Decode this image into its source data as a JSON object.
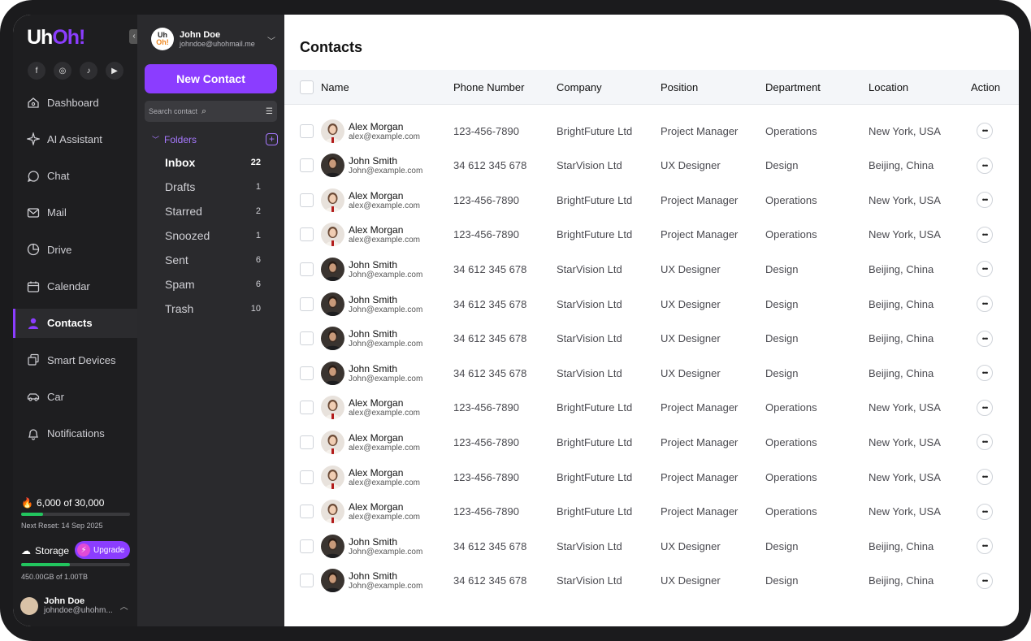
{
  "app": {
    "logo_a": "Uh",
    "logo_b": "Oh!"
  },
  "nav": {
    "socials": [
      "f",
      "◎",
      "♪",
      "▶"
    ],
    "items": [
      {
        "label": "Dashboard",
        "icon": "home-icon"
      },
      {
        "label": "AI Assistant",
        "icon": "sparkle-icon"
      },
      {
        "label": "Chat",
        "icon": "chat-icon"
      },
      {
        "label": "Mail",
        "icon": "mail-icon"
      },
      {
        "label": "Drive",
        "icon": "drive-icon"
      },
      {
        "label": "Calendar",
        "icon": "calendar-icon"
      },
      {
        "label": "Contacts",
        "icon": "user-icon",
        "active": true
      },
      {
        "label": "Smart Devices",
        "icon": "devices-icon"
      },
      {
        "label": "Car",
        "icon": "car-icon"
      },
      {
        "label": "Notifications",
        "icon": "bell-icon"
      }
    ],
    "credits": "6,000 of 30,000",
    "credits_fraction": 0.2,
    "next_reset": "Next Reset: 14 Sep 2025",
    "storage_label": "Storage",
    "upgrade_label": "Upgrade",
    "storage_text": "450.00GB of 1.00TB",
    "storage_fraction": 0.45,
    "user_name": "John Doe",
    "user_email": "johndoe@uhohm..."
  },
  "account": {
    "logo_a": "Uh",
    "logo_b": "Oh!",
    "name": "John Doe",
    "email": "johndoe@uhohmail.me"
  },
  "folders": {
    "new_contact_label": "New Contact",
    "search_placeholder": "Search contact",
    "heading": "Folders",
    "items": [
      {
        "label": "Inbox",
        "count": "22",
        "selected": true
      },
      {
        "label": "Drafts",
        "count": "1"
      },
      {
        "label": "Starred",
        "count": "2"
      },
      {
        "label": "Snoozed",
        "count": "1"
      },
      {
        "label": "Sent",
        "count": "6"
      },
      {
        "label": "Spam",
        "count": "6"
      },
      {
        "label": "Trash",
        "count": "10"
      }
    ]
  },
  "main": {
    "title": "Contacts",
    "columns": [
      "Name",
      "Phone Number",
      "Company",
      "Position",
      "Department",
      "Location",
      "Action"
    ],
    "rows": [
      {
        "name": "Alex Morgan",
        "email": "alex@example.com",
        "phone": "123-456-7890",
        "company": "BrightFuture Ltd",
        "position": "Project Manager",
        "department": "Operations",
        "location": "New York, USA",
        "avatar": "female"
      },
      {
        "name": "John Smith",
        "email": "John@example.com",
        "phone": "34 612 345 678",
        "company": "StarVision Ltd",
        "position": "UX Designer",
        "department": "Design",
        "location": "Beijing, China",
        "avatar": "male"
      },
      {
        "name": "Alex Morgan",
        "email": "alex@example.com",
        "phone": "123-456-7890",
        "company": "BrightFuture Ltd",
        "position": "Project Manager",
        "department": "Operations",
        "location": "New York, USA",
        "avatar": "female"
      },
      {
        "name": "Alex Morgan",
        "email": "alex@example.com",
        "phone": "123-456-7890",
        "company": "BrightFuture Ltd",
        "position": "Project Manager",
        "department": "Operations",
        "location": "New York, USA",
        "avatar": "female"
      },
      {
        "name": "John Smith",
        "email": "John@example.com",
        "phone": "34 612 345 678",
        "company": "StarVision Ltd",
        "position": "UX Designer",
        "department": "Design",
        "location": "Beijing, China",
        "avatar": "male"
      },
      {
        "name": "John Smith",
        "email": "John@example.com",
        "phone": "34 612 345 678",
        "company": "StarVision Ltd",
        "position": "UX Designer",
        "department": "Design",
        "location": "Beijing, China",
        "avatar": "male"
      },
      {
        "name": "John Smith",
        "email": "John@example.com",
        "phone": "34 612 345 678",
        "company": "StarVision Ltd",
        "position": "UX Designer",
        "department": "Design",
        "location": "Beijing, China",
        "avatar": "male"
      },
      {
        "name": "John Smith",
        "email": "John@example.com",
        "phone": "34 612 345 678",
        "company": "StarVision Ltd",
        "position": "UX Designer",
        "department": "Design",
        "location": "Beijing, China",
        "avatar": "male"
      },
      {
        "name": "Alex Morgan",
        "email": "alex@example.com",
        "phone": "123-456-7890",
        "company": "BrightFuture Ltd",
        "position": "Project Manager",
        "department": "Operations",
        "location": "New York, USA",
        "avatar": "female"
      },
      {
        "name": "Alex Morgan",
        "email": "alex@example.com",
        "phone": "123-456-7890",
        "company": "BrightFuture Ltd",
        "position": "Project Manager",
        "department": "Operations",
        "location": "New York, USA",
        "avatar": "female"
      },
      {
        "name": "Alex Morgan",
        "email": "alex@example.com",
        "phone": "123-456-7890",
        "company": "BrightFuture Ltd",
        "position": "Project Manager",
        "department": "Operations",
        "location": "New York, USA",
        "avatar": "female"
      },
      {
        "name": "Alex Morgan",
        "email": "alex@example.com",
        "phone": "123-456-7890",
        "company": "BrightFuture Ltd",
        "position": "Project Manager",
        "department": "Operations",
        "location": "New York, USA",
        "avatar": "female"
      },
      {
        "name": "John Smith",
        "email": "John@example.com",
        "phone": "34 612 345 678",
        "company": "StarVision Ltd",
        "position": "UX Designer",
        "department": "Design",
        "location": "Beijing, China",
        "avatar": "male"
      },
      {
        "name": "John Smith",
        "email": "John@example.com",
        "phone": "34 612 345 678",
        "company": "StarVision Ltd",
        "position": "UX Designer",
        "department": "Design",
        "location": "Beijing, China",
        "avatar": "male"
      }
    ]
  },
  "colors": {
    "accent": "#8b3dff",
    "progress": "#22c55e",
    "nav_bg": "#1e1e20",
    "folder_bg": "#2a2a2d"
  }
}
